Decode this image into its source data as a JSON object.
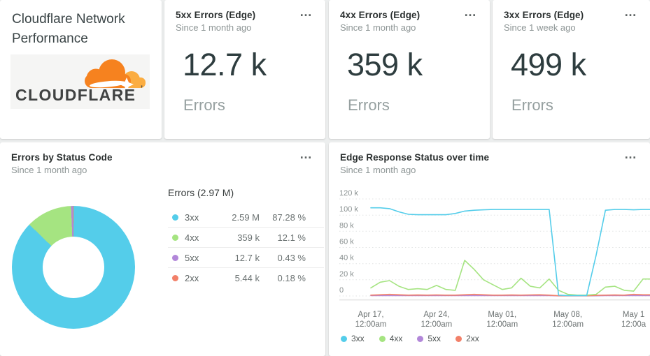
{
  "title_card": {
    "title": "Cloudflare Network Performance",
    "logo_text": "CLOUDFLARE",
    "logo_tick": "’",
    "logo_orange": "#F6821F",
    "logo_light_orange": "#FBAD41",
    "logo_text_color": "#404242"
  },
  "ui": {
    "card_menu_icon": "…"
  },
  "billboards": [
    {
      "title": "5xx Errors (Edge)",
      "subtitle": "Since 1 month ago",
      "value": "12.7 k",
      "unit": "Errors"
    },
    {
      "title": "4xx Errors (Edge)",
      "subtitle": "Since 1 month ago",
      "value": "359 k",
      "unit": "Errors"
    },
    {
      "title": "3xx Errors (Edge)",
      "subtitle": "Since 1 week ago",
      "value": "499 k",
      "unit": "Errors"
    }
  ],
  "pie_card": {
    "title": "Errors by Status Code",
    "subtitle": "Since 1 month ago"
  },
  "line_card": {
    "title": "Edge Response Status over time",
    "subtitle": "Since 1 month ago"
  },
  "chart_data": [
    {
      "type": "pie",
      "donut": true,
      "title": "Errors (2.97 M)",
      "legend_position": "right",
      "slices": [
        {
          "label": "3xx",
          "value": 2590000,
          "value_label": "2.59 M",
          "pct": 87.28,
          "pct_label": "87.28 %",
          "color": "#54CDEA"
        },
        {
          "label": "4xx",
          "value": 359000,
          "value_label": "359 k",
          "pct": 12.1,
          "pct_label": "12.1 %",
          "color": "#A5E481"
        },
        {
          "label": "5xx",
          "value": 12700,
          "value_label": "12.7 k",
          "pct": 0.43,
          "pct_label": "0.43 %",
          "color": "#B287D9"
        },
        {
          "label": "2xx",
          "value": 5440,
          "value_label": "5.44 k",
          "pct": 0.18,
          "pct_label": "0.18 %",
          "color": "#F28069"
        }
      ]
    },
    {
      "type": "line",
      "title": "Edge Response Status over time",
      "x_unit": "days since Apr 17, 12:00am",
      "y_unit": "thousands of errors",
      "ylim": [
        0,
        120
      ],
      "grid": "dotted horizontal every 20k",
      "y_tick_labels": [
        "120 k",
        "100 k",
        "80 k",
        "60 k",
        "40 k",
        "20 k",
        "0"
      ],
      "x_tick_days": [
        0,
        7,
        14,
        21,
        28
      ],
      "x_tick_labels": [
        [
          "Apr 17,",
          "12:00am"
        ],
        [
          "Apr 24,",
          "12:00am"
        ],
        [
          "May 01,",
          "12:00am"
        ],
        [
          "May 08,",
          "12:00am"
        ],
        [
          "May 1",
          "12:00a"
        ]
      ],
      "legend_position": "bottom",
      "series": [
        {
          "name": "3xx",
          "color": "#54CDEA",
          "values": [
            109,
            109,
            108,
            104,
            101,
            100.5,
            100.5,
            100.5,
            100.5,
            102,
            105,
            106,
            106.5,
            107,
            107,
            107,
            107,
            107,
            107,
            107,
            1,
            0.5,
            0.5,
            0.5,
            50,
            106,
            107,
            107,
            106.5,
            107
          ]
        },
        {
          "name": "4xx",
          "color": "#A5E481",
          "values": [
            10,
            17,
            19,
            12,
            8,
            9,
            8,
            13,
            8,
            7,
            44,
            33,
            20,
            14,
            8,
            10,
            22,
            12,
            10,
            21,
            7,
            2,
            1,
            1,
            2,
            11,
            12,
            7,
            6,
            21
          ]
        },
        {
          "name": "5xx",
          "color": "#B287D9",
          "values": [
            0.4,
            0.4,
            0.4,
            0.4,
            0.4,
            0.4,
            0.4,
            0.4,
            0.4,
            0.4,
            0.4,
            0.4,
            0.4,
            0.4,
            0.4,
            0.4,
            0.4,
            0.4,
            0.4,
            0.4,
            0.2,
            0.2,
            0.2,
            0.2,
            0.3,
            0.4,
            0.4,
            0.4,
            0.4,
            0.4
          ]
        },
        {
          "name": "2xx",
          "color": "#F28069",
          "values": [
            1,
            1.5,
            2,
            1.5,
            1,
            1.2,
            1,
            1.3,
            1,
            1,
            1.5,
            2,
            1.5,
            1,
            1,
            1.2,
            1,
            1.3,
            1.5,
            1,
            0.3,
            0.3,
            0.3,
            0.3,
            0.8,
            1,
            1.2,
            1,
            2,
            1.5
          ]
        }
      ]
    }
  ]
}
